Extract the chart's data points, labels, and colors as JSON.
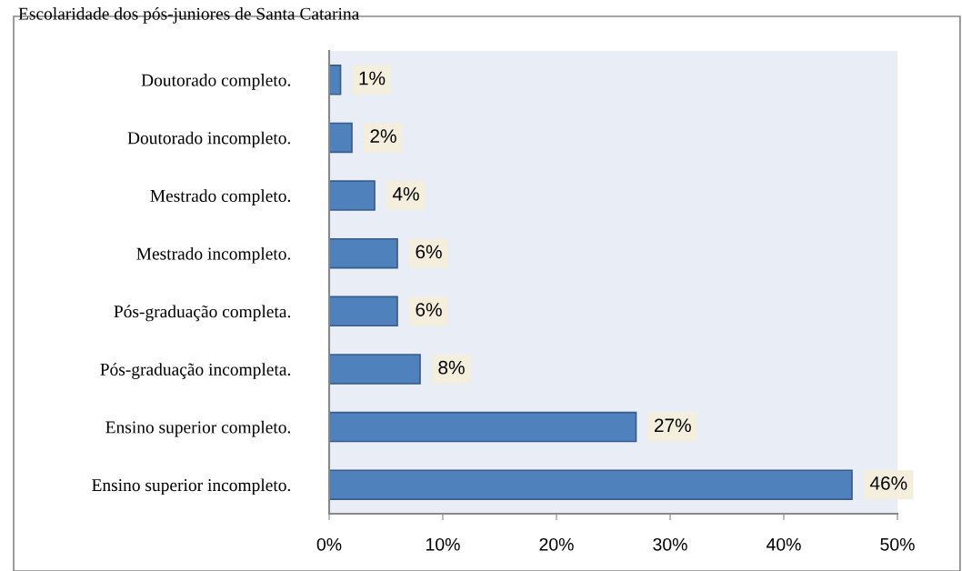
{
  "chart_data": {
    "type": "bar",
    "orientation": "horizontal",
    "title": "Escolaridade dos pós-juniores de Santa Catarina",
    "categories": [
      "Doutorado completo.",
      "Doutorado incompleto.",
      "Mestrado completo.",
      "Mestrado incompleto.",
      "Pós-graduação completa.",
      "Pós-graduação incompleta.",
      "Ensino superior completo.",
      "Ensino superior incompleto."
    ],
    "values": [
      1,
      2,
      4,
      6,
      6,
      8,
      27,
      46
    ],
    "color": "#4f81bd",
    "value_labels": [
      "1%",
      "2%",
      "4%",
      "6%",
      "6%",
      "8%",
      "27%",
      "46%"
    ],
    "xlim": [
      0,
      50
    ],
    "xticks": [
      {
        "value": 0,
        "label": "0%"
      },
      {
        "value": 10,
        "label": "10%"
      },
      {
        "value": 20,
        "label": "20%"
      },
      {
        "value": 30,
        "label": "30%"
      },
      {
        "value": 40,
        "label": "40%"
      },
      {
        "value": 50,
        "label": "50%"
      }
    ]
  }
}
